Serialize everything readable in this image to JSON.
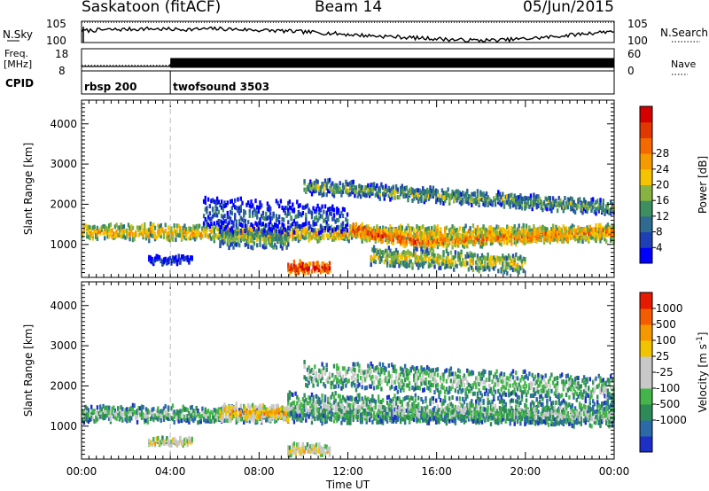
{
  "header": {
    "station": "Saskatoon (fitACF)",
    "beam": "Beam 14",
    "date": "05/Jun/2015"
  },
  "chart_data": [
    {
      "type": "line",
      "name": "noise-panel",
      "left_label": "N.Sky",
      "right_label": "N.Search",
      "left_ticks": [
        "10^5",
        "10^0"
      ],
      "right_ticks": [
        "10^5",
        "10^0"
      ],
      "series": [
        {
          "name": "N.Sky",
          "style": "solid",
          "x": [
            0,
            1,
            2,
            3,
            4,
            5,
            6,
            7,
            8,
            9,
            10,
            11,
            12,
            13,
            14,
            15,
            16,
            17,
            18,
            19,
            20,
            21,
            22,
            23,
            24
          ],
          "y_frac": [
            0.55,
            0.6,
            0.62,
            0.65,
            0.62,
            0.62,
            0.65,
            0.62,
            0.58,
            0.55,
            0.5,
            0.45,
            0.38,
            0.32,
            0.28,
            0.22,
            0.18,
            0.12,
            0.1,
            0.12,
            0.18,
            0.25,
            0.35,
            0.45,
            0.55
          ]
        },
        {
          "name": "N.Search",
          "style": "dotted",
          "x": [
            0,
            24
          ],
          "y_frac": [
            0.95,
            0.95
          ]
        }
      ]
    },
    {
      "type": "line",
      "name": "freq-panel",
      "left_label": "Freq. [MHz]",
      "right_label": "Nave",
      "left_ticks": [
        "18",
        "8"
      ],
      "right_ticks": [
        "60",
        "0"
      ],
      "series": [
        {
          "name": "Freq",
          "x": [
            0,
            4,
            4,
            24
          ],
          "mhz": [
            10,
            10,
            11,
            11
          ]
        },
        {
          "name": "Nave",
          "x": [
            0,
            4,
            4,
            24
          ],
          "y_frac": [
            0.25,
            0.25,
            0.6,
            0.6
          ]
        }
      ]
    },
    {
      "type": "table",
      "name": "cpid-panel",
      "label": "CPID",
      "segments": [
        {
          "start": 0,
          "end": 4,
          "label": "rbsp 200"
        },
        {
          "start": 4,
          "end": 24,
          "label": "twofsound 3503"
        }
      ]
    },
    {
      "type": "heatmap",
      "name": "power-panel",
      "ylabel": "Slant Range [km]",
      "ylim": [
        180,
        4590
      ],
      "yticks": [
        1000,
        2000,
        3000,
        4000
      ],
      "colorbar": {
        "label": "Power [dB]",
        "ticks": [
          "4",
          "8",
          "12",
          "16",
          "20",
          "24",
          "28"
        ],
        "colors": [
          "#0000ff",
          "#1f3fb4",
          "#2e6b8e",
          "#3d8f60",
          "#86b341",
          "#f5c400",
          "#f59b00",
          "#f46a00",
          "#e03800",
          "#d40000"
        ]
      },
      "bands": [
        {
          "x": [
            0,
            24
          ],
          "center_km": [
            1300,
            1250
          ],
          "half_width_km": 160,
          "level": 6
        },
        {
          "x": [
            6.2,
            9.3
          ],
          "center_km": [
            1150,
            1100
          ],
          "half_width_km": 220,
          "level": 4
        },
        {
          "x": [
            12.2,
            15.3
          ],
          "center_km": [
            1350,
            1050
          ],
          "half_width_km": 150,
          "level": 8
        },
        {
          "x": [
            15.3,
            24
          ],
          "center_km": [
            1050,
            1300
          ],
          "half_width_km": 140,
          "level": 7
        },
        {
          "x": [
            9.3,
            11.2
          ],
          "center_km": [
            400,
            400
          ],
          "half_width_km": 120,
          "level": 9
        },
        {
          "x": [
            3,
            5
          ],
          "center_km": [
            600,
            600
          ],
          "half_width_km": 50,
          "level": 2
        },
        {
          "x": [
            10,
            24
          ],
          "center_km": [
            2450,
            1900
          ],
          "half_width_km": 150,
          "level": 4
        },
        {
          "x": [
            5.5,
            12
          ],
          "center_km": [
            1800,
            1600
          ],
          "half_width_km": 350,
          "level": 2
        },
        {
          "x": [
            13,
            20
          ],
          "center_km": [
            700,
            500
          ],
          "half_width_km": 200,
          "level": 5
        }
      ]
    },
    {
      "type": "heatmap",
      "name": "velocity-panel",
      "ylabel": "Slant Range [km]",
      "ylim": [
        180,
        4590
      ],
      "yticks": [
        1000,
        2000,
        3000,
        4000
      ],
      "colorbar": {
        "label": "Velocity [m s^-1]",
        "ticks": [
          "1000",
          "500",
          "100",
          "25",
          "-25",
          "-100",
          "-500",
          "-1000"
        ],
        "colors": [
          "#1e2fc8",
          "#2b6aa6",
          "#2e8b57",
          "#44b649",
          "#c8c8c8",
          "#c8c8c8",
          "#f2c400",
          "#f59800",
          "#f45c00",
          "#e51a00"
        ]
      },
      "bands": [
        {
          "x": [
            0,
            24
          ],
          "center_km": [
            1300,
            1250
          ],
          "half_width_km": 170,
          "level": 4
        },
        {
          "x": [
            6.2,
            9.3
          ],
          "center_km": [
            1350,
            1300
          ],
          "half_width_km": 180,
          "level": 7
        },
        {
          "x": [
            9.3,
            24
          ],
          "center_km": [
            1500,
            1300
          ],
          "half_width_km": 300,
          "level": 4
        },
        {
          "x": [
            10,
            24
          ],
          "center_km": [
            2300,
            1900
          ],
          "half_width_km": 300,
          "level": 4
        },
        {
          "x": [
            9.3,
            11.2
          ],
          "center_km": [
            400,
            400
          ],
          "half_width_km": 120,
          "level": 6
        },
        {
          "x": [
            3,
            5
          ],
          "center_km": [
            600,
            600
          ],
          "half_width_km": 50,
          "level": 6
        }
      ]
    }
  ],
  "x_axis": {
    "label": "Time UT",
    "ticks": [
      "00:00",
      "04:00",
      "08:00",
      "12:00",
      "16:00",
      "20:00",
      "00:00"
    ],
    "hours": [
      0,
      4,
      8,
      12,
      16,
      20,
      24
    ]
  }
}
